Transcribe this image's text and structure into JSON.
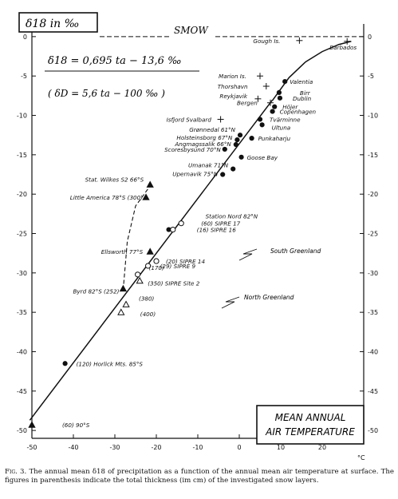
{
  "chart_data": {
    "type": "scatter",
    "xlabel": "MEAN ANNUAL AIR TEMPERATURE",
    "xlabel_line1": "MEAN ANNUAL",
    "xlabel_line2": "AIR TEMPERATURE",
    "x_unit": "°C",
    "ylabel": "δ18 in ‰",
    "xlim": [
      -50,
      30
    ],
    "ylim": [
      -51,
      1
    ],
    "x_ticks": [
      -50,
      -40,
      -30,
      -20,
      -10,
      0,
      10,
      20
    ],
    "y_ticks": [
      0,
      -5,
      -10,
      -15,
      -20,
      -25,
      -30,
      -35,
      -40,
      -45,
      -50
    ],
    "reference_label": "SMOW",
    "equation": "δ18 = 0,695 ta − 13,6 ‰",
    "equation2": "( δD = 5,6 ta − 100 ‰ )",
    "legend_box": "δ18 in ‰",
    "regression_line": {
      "slope": 0.695,
      "intercept": -13.6
    },
    "curve_points": [
      [
        8,
        -8.1
      ],
      [
        12,
        -5.2
      ],
      [
        16,
        -3.2
      ],
      [
        20,
        -1.9
      ],
      [
        24,
        -1.0
      ],
      [
        27,
        -0.6
      ]
    ],
    "dashed_line": [
      [
        -28,
        -32.2
      ],
      [
        -27,
        -26
      ],
      [
        -25,
        -21.5
      ],
      [
        -21,
        -18.6
      ]
    ],
    "points": [
      {
        "label": "Gough Is.",
        "x": 14.5,
        "y": -0.5,
        "marker": "plus"
      },
      {
        "label": "Barbados",
        "x": 26.0,
        "y": -0.6,
        "marker": "plus"
      },
      {
        "label": "Marion Is.",
        "x": 5.0,
        "y": -5.0,
        "marker": "plus"
      },
      {
        "label": "Thorshavn",
        "x": 6.5,
        "y": -6.3,
        "marker": "plus"
      },
      {
        "label": "Reykjavik",
        "x": 4.5,
        "y": -7.9,
        "marker": "plus"
      },
      {
        "label": "Bergen",
        "x": 7.5,
        "y": -8.4,
        "marker": "plus"
      },
      {
        "label": "Isfjord Svalbard",
        "x": -4.5,
        "y": -10.5,
        "marker": "plus"
      },
      {
        "label": "Valentia",
        "x": 11.0,
        "y": -5.7,
        "marker": "dot"
      },
      {
        "label": "Birr",
        "x": 9.6,
        "y": -7.1,
        "marker": "dot"
      },
      {
        "label": "Dublin",
        "x": 9.8,
        "y": -7.8,
        "marker": "dot"
      },
      {
        "label": "Höjer",
        "x": 8.5,
        "y": -8.9,
        "marker": "dot"
      },
      {
        "label": "Copenhagen",
        "x": 8.0,
        "y": -9.5,
        "marker": "dot"
      },
      {
        "label": "Tvärminne",
        "x": 5.0,
        "y": -10.5,
        "marker": "dot"
      },
      {
        "label": "Ultuna",
        "x": 5.5,
        "y": -11.2,
        "marker": "dot"
      },
      {
        "label": "Punkaharju",
        "x": 3.0,
        "y": -12.9,
        "marker": "dot"
      },
      {
        "label": "Grønnedal 61°N",
        "x": 0.2,
        "y": -12.5,
        "marker": "dot"
      },
      {
        "label": "Holsteinsborg 67°N",
        "x": -0.5,
        "y": -13.1,
        "marker": "dot"
      },
      {
        "label": "Angmagssalik 66°N",
        "x": -0.8,
        "y": -13.7,
        "marker": "dot"
      },
      {
        "label": "Scoresbysund 70°N",
        "x": -3.5,
        "y": -14.3,
        "marker": "dot"
      },
      {
        "label": "Goose Bay",
        "x": 0.5,
        "y": -15.3,
        "marker": "dot"
      },
      {
        "label": "Umanak 71°N",
        "x": -1.5,
        "y": -16.8,
        "marker": "dot"
      },
      {
        "label": "Upernavik 75°N",
        "x": -4.0,
        "y": -17.5,
        "marker": "dot"
      },
      {
        "label": "Stat. Wilkes S2 66°S",
        "x": -21.5,
        "y": -18.8,
        "marker": "triangle"
      },
      {
        "label": "Little America 78°S (300)",
        "x": -22.5,
        "y": -20.4,
        "marker": "triangle"
      },
      {
        "label": "Station Nord 82°N",
        "x": -17.0,
        "y": -24.5,
        "marker": "dot"
      },
      {
        "label": "(60) SIPRE 17",
        "x": -14.0,
        "y": -23.7,
        "marker": "circle"
      },
      {
        "label": "(16) SIPRE 16",
        "x": -16.0,
        "y": -24.5,
        "marker": "circle"
      },
      {
        "label": "Ellsworth 77°S",
        "x": -21.5,
        "y": -27.3,
        "marker": "triangle"
      },
      {
        "label": "(20) SIPRE 14",
        "x": -20.0,
        "y": -28.5,
        "marker": "circle"
      },
      {
        "label": "(29) SIPRE 9",
        "x": -22.0,
        "y": -29.1,
        "marker": "circle"
      },
      {
        "label": "(170)",
        "x": -24.5,
        "y": -30.2,
        "marker": "circle"
      },
      {
        "label": "(350) SIPRE Site 2",
        "x": -24.0,
        "y": -31.0,
        "marker": "triangle-open"
      },
      {
        "label": "Byrd 82°S (252)",
        "x": -28.0,
        "y": -32.0,
        "marker": "triangle"
      },
      {
        "label": "(380)",
        "x": -27.3,
        "y": -34.0,
        "marker": "triangle-open"
      },
      {
        "label": "(400)",
        "x": -28.5,
        "y": -35.0,
        "marker": "triangle-open"
      },
      {
        "label": "(120) Horlick Mts. 85°S",
        "x": -42.0,
        "y": -41.5,
        "marker": "dot"
      },
      {
        "label": "(60) 90°S",
        "x": -50.0,
        "y": -49.3,
        "marker": "triangle"
      }
    ],
    "group_labels": [
      "South Greenland",
      "North Greenland"
    ]
  },
  "caption": {
    "fig_label": "Fig. 3.",
    "text": "The annual mean δ18 of precipitation as a function of the annual mean air temperature at surface. The figures in parenthesis indicate the total thickness (im cm) of the investigated snow layers."
  }
}
